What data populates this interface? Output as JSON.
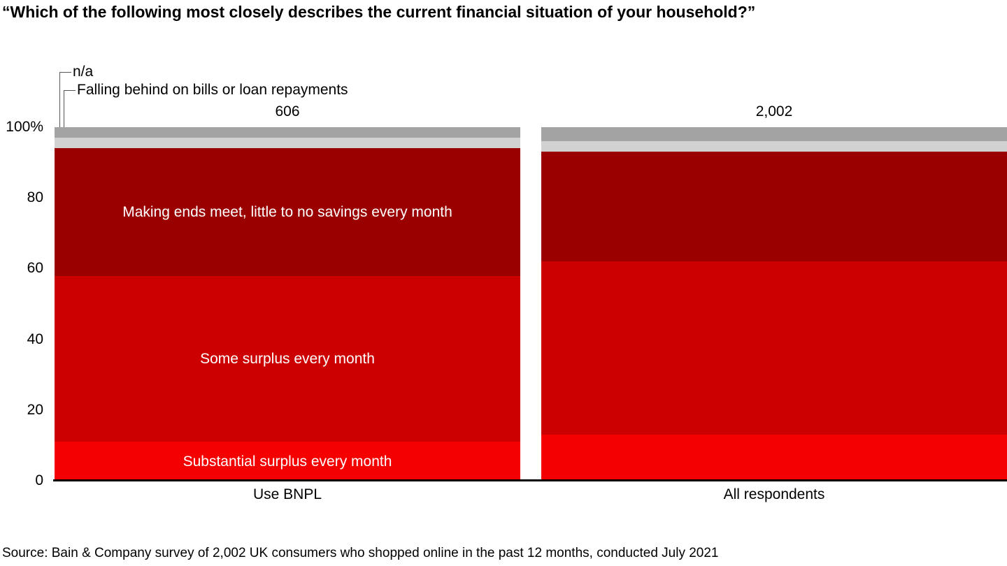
{
  "title": "“Which of the following most closely describes the current financial situation of your household?”",
  "y_axis_ticks": [
    "100%",
    "80",
    "60",
    "40",
    "20",
    "0"
  ],
  "bars": {
    "left": {
      "count": "606",
      "label": "Use BNPL"
    },
    "right": {
      "count": "2,002",
      "label": "All respondents"
    }
  },
  "callouts": {
    "na": "n/a",
    "falling_behind": "Falling behind on bills or loan repayments"
  },
  "source": "Source: Bain & Company survey of 2,002 UK consumers who shopped online in the past 12 months, conducted July 2021",
  "colors": {
    "substantial_surplus": "#f40000",
    "some_surplus": "#cc0000",
    "making_ends_meet": "#9a0000",
    "falling_behind": "#d1d1d1",
    "na": "#a3a3a3",
    "axis": "#000000",
    "callout_line": "#555555"
  },
  "chart_data": {
    "type": "bar",
    "subtype": "stacked-100-percent",
    "title": "“Which of the following most closely describes the current financial situation of your household?”",
    "categories": [
      "Use BNPL",
      "All respondents"
    ],
    "category_counts": [
      "606",
      "2,002"
    ],
    "series": [
      {
        "name": "Substantial surplus every month",
        "values": [
          11,
          13
        ],
        "color_key": "substantial_surplus",
        "label_in_bar": true
      },
      {
        "name": "Some surplus every month",
        "values": [
          47,
          49
        ],
        "color_key": "some_surplus",
        "label_in_bar": true
      },
      {
        "name": "Making ends meet, little to no savings every month",
        "values": [
          36,
          31
        ],
        "color_key": "making_ends_meet",
        "label_in_bar": true
      },
      {
        "name": "Falling behind on bills or loan repayments",
        "values": [
          3,
          3
        ],
        "color_key": "falling_behind",
        "label_in_bar": false
      },
      {
        "name": "n/a",
        "values": [
          3,
          4
        ],
        "color_key": "na",
        "label_in_bar": false
      }
    ],
    "ylim": [
      0,
      100
    ],
    "xlabel": "",
    "ylabel": "",
    "grid": false,
    "legend_position": "callout-top-left-and-in-bar-labels",
    "source": "Source: Bain & Company survey of 2,002 UK consumers who shopped online in the past 12 months, conducted July 2021"
  }
}
